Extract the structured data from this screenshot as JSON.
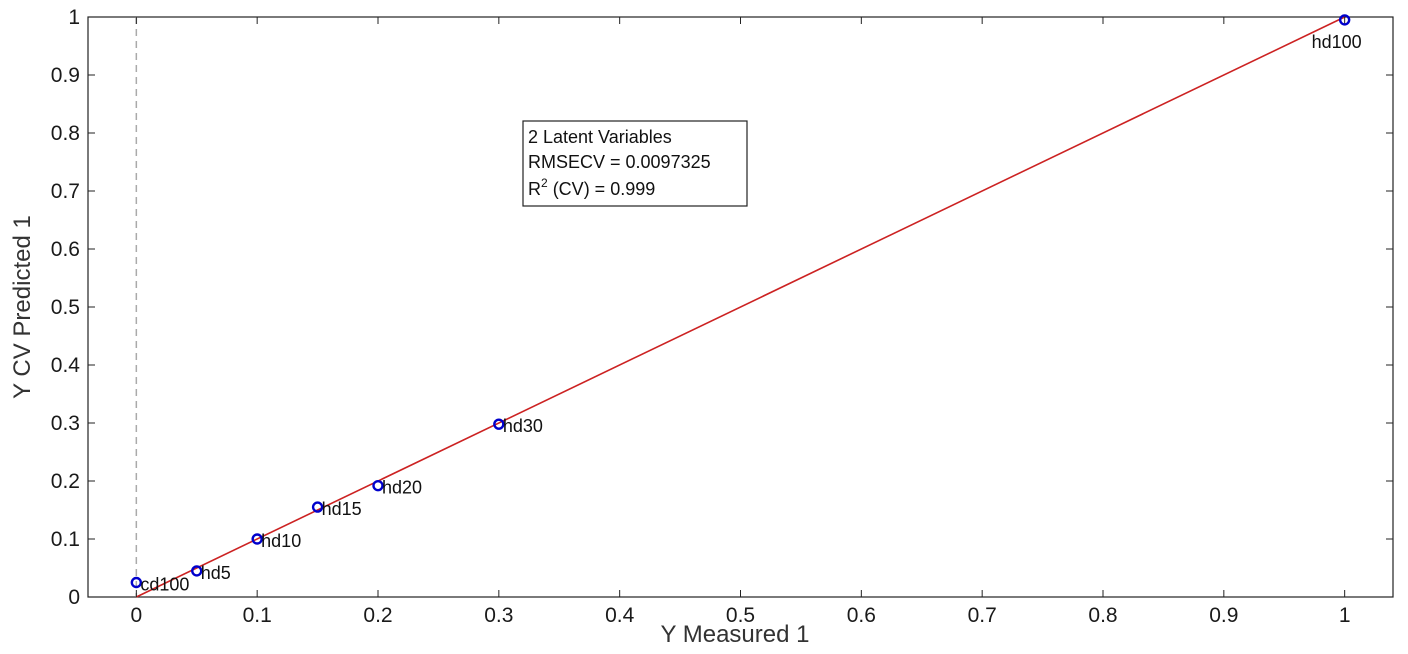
{
  "chart_data": {
    "type": "scatter",
    "title": "",
    "xlabel": "Y Measured 1",
    "ylabel": "Y CV Predicted 1",
    "xlim": [
      -0.04,
      1.04
    ],
    "ylim": [
      0,
      1
    ],
    "x_ticks": [
      0,
      0.1,
      0.2,
      0.3,
      0.4,
      0.5,
      0.6,
      0.7,
      0.8,
      0.9,
      1
    ],
    "y_ticks": [
      0,
      0.1,
      0.2,
      0.3,
      0.4,
      0.5,
      0.6,
      0.7,
      0.8,
      0.9,
      1
    ],
    "grid": false,
    "points": [
      {
        "label": "cd100",
        "x": 0,
        "y": 0.025
      },
      {
        "label": "hd5",
        "x": 0.05,
        "y": 0.045
      },
      {
        "label": "hd10",
        "x": 0.1,
        "y": 0.1
      },
      {
        "label": "hd15",
        "x": 0.15,
        "y": 0.155
      },
      {
        "label": "hd20",
        "x": 0.2,
        "y": 0.192
      },
      {
        "label": "hd30",
        "x": 0.3,
        "y": 0.298
      },
      {
        "label": "hd100",
        "x": 1,
        "y": 0.995
      }
    ],
    "fit_line": {
      "x": [
        0,
        1
      ],
      "y": [
        0,
        1
      ]
    },
    "reference_line": {
      "x": 0,
      "style": "dashed"
    },
    "annotation": {
      "line1": "2 Latent Variables",
      "line2": "RMSECV = 0.0097325",
      "line3_prefix": "R",
      "line3_sup": "2",
      "line3_suffix": " (CV) = 0.999"
    },
    "colors": {
      "points": "#0000cc",
      "fit_line": "#cc2222",
      "reference_line": "#aaaaaa",
      "axes": "#222222"
    }
  }
}
